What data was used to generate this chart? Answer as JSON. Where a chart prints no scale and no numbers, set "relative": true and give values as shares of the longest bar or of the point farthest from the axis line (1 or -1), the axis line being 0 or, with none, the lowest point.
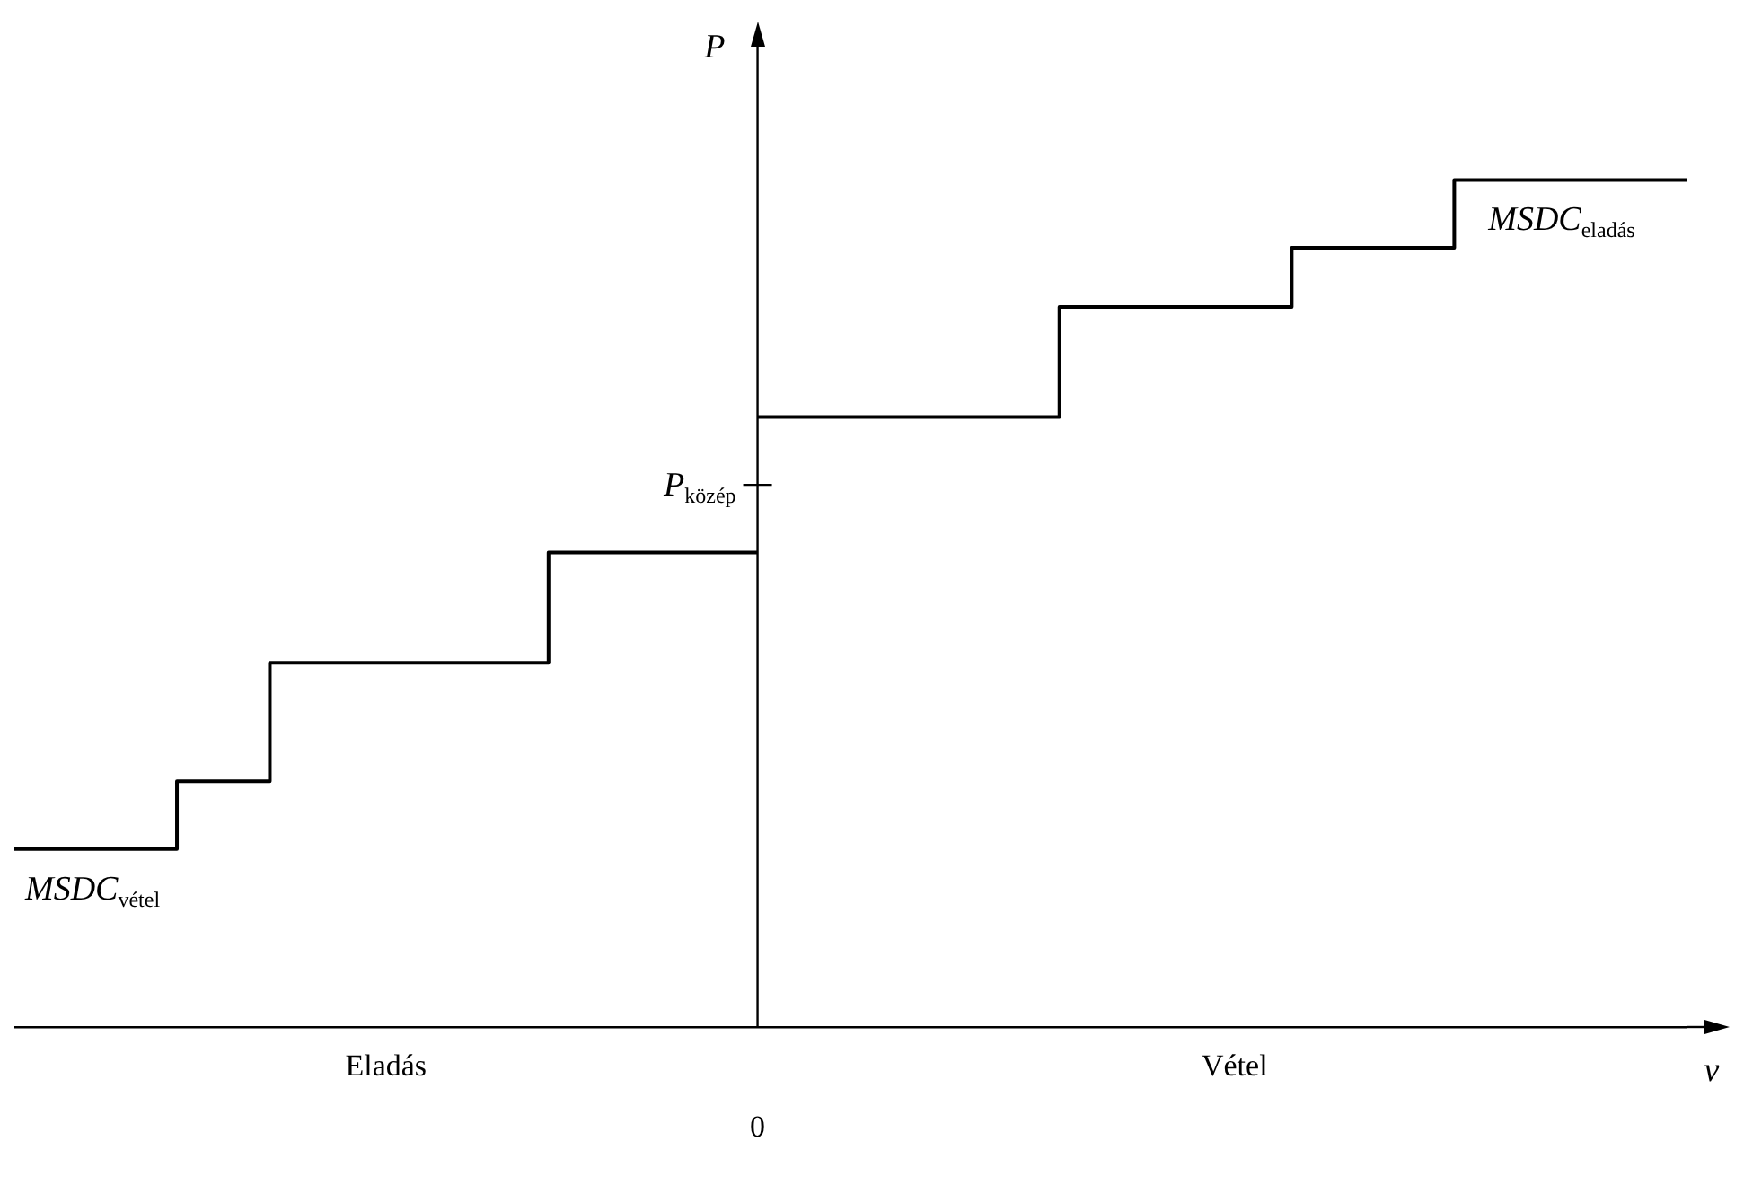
{
  "chart_data": {
    "type": "step",
    "relative": true,
    "xlabel": "v",
    "ylabel": "P",
    "categories": [
      null,
      null,
      null,
      null,
      null,
      null,
      null,
      null,
      null,
      null,
      null,
      null,
      null,
      null,
      null,
      null,
      null,
      null,
      null,
      null,
      null,
      null,
      null,
      null,
      null,
      null,
      null,
      null,
      null,
      null,
      null,
      null,
      null,
      null,
      null,
      null,
      null,
      null,
      null,
      null,
      null,
      null,
      null,
      null,
      null,
      null,
      null,
      null,
      null,
      null,
      null,
      null,
      null,
      null,
      null,
      null,
      null,
      null,
      null,
      null,
      null,
      null,
      null,
      null,
      null,
      null,
      null,
      null,
      null,
      null,
      null,
      null,
      null
    ],
    "series": [
      {
        "name": "MSDC$_{vétel}$",
        "color": "#000000",
        "values": [
          0.21,
          0.21,
          0.21,
          0.21,
          0.21,
          0.21,
          0.21,
          0.21,
          0.29,
          0.29,
          0.29,
          0.29,
          0.43,
          0.43,
          0.43,
          0.43,
          0.43,
          0.43,
          0.43,
          0.43,
          0.43,
          0.43,
          0.43,
          0.43,
          0.56,
          0.56,
          0.56,
          0.56,
          0.56,
          0.56,
          0.56,
          0.56,
          0.56,
          null,
          null,
          null,
          null,
          null,
          null,
          null,
          null,
          null,
          null,
          null,
          null,
          null,
          null,
          null,
          null,
          null,
          null,
          null,
          null,
          null,
          null,
          null,
          null,
          null,
          null,
          null,
          null,
          null,
          null,
          null,
          null,
          null,
          null,
          null,
          null,
          null,
          null,
          null,
          null
        ]
      },
      {
        "name": "MSDC$_{eladás}$",
        "color": "#000000",
        "values": [
          null,
          null,
          null,
          null,
          null,
          null,
          null,
          null,
          null,
          null,
          null,
          null,
          null,
          null,
          null,
          null,
          null,
          null,
          null,
          null,
          null,
          null,
          null,
          null,
          null,
          null,
          null,
          null,
          null,
          null,
          null,
          null,
          0.72,
          0.72,
          0.72,
          0.72,
          0.72,
          0.72,
          0.72,
          0.72,
          0.72,
          0.72,
          0.72,
          0.72,
          0.72,
          0.72,
          0.85,
          0.85,
          0.85,
          0.85,
          0.85,
          0.85,
          0.85,
          0.85,
          0.85,
          0.85,
          0.92,
          0.92,
          0.92,
          0.92,
          0.92,
          0.92,
          0.92,
          1,
          1,
          1,
          1,
          1,
          1,
          1,
          1,
          1,
          1
        ]
      }
    ],
    "annotations": [
      "Eladás",
      "Vétel",
      "0",
      "P$_{közép}$"
    ]
  }
}
